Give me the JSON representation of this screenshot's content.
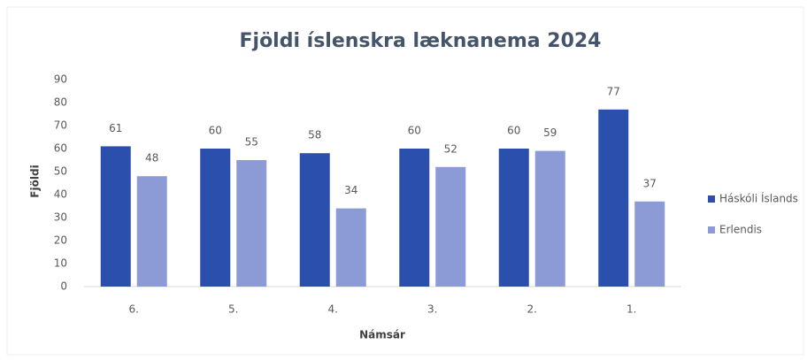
{
  "chart_data": {
    "type": "bar",
    "title": "Fjöldi íslenskra læknanema 2024",
    "y_label": "Fjöldi",
    "x_label": "Námsár",
    "categories": [
      "6.",
      "5.",
      "4.",
      "3.",
      "2.",
      "1."
    ],
    "series": [
      {
        "name": "Háskóli Íslands",
        "color": "#2b4fad",
        "values": [
          61,
          60,
          58,
          60,
          60,
          77
        ]
      },
      {
        "name": "Erlendis",
        "color": "#8c9ad6",
        "values": [
          48,
          55,
          34,
          52,
          59,
          37
        ]
      }
    ],
    "ylim": [
      0,
      90
    ],
    "yticks": [
      0,
      10,
      20,
      30,
      40,
      50,
      60,
      70,
      80,
      90
    ],
    "grid": false,
    "legend": "right"
  }
}
